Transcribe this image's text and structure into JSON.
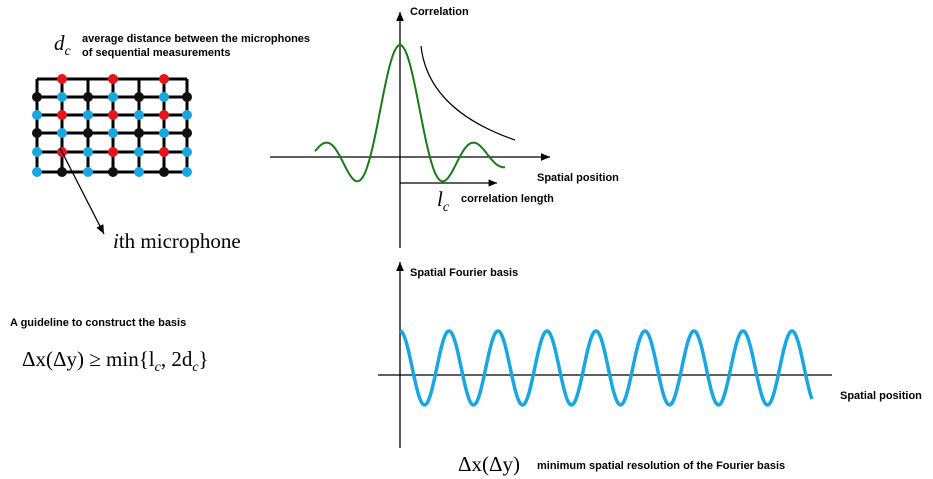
{
  "mic_grid": {
    "symbol": {
      "base": "d",
      "sub": "c"
    },
    "description": [
      "average distance between the microphones",
      "of sequential measurements"
    ],
    "mic_label": {
      "symbol": "i",
      "text": "th microphone"
    }
  },
  "correlation_plot": {
    "y_label": "Correlation",
    "x_label": "Spatial position",
    "length_symbol": {
      "base": "l",
      "sub": "c"
    },
    "length_label": "correlation length"
  },
  "fourier_plot": {
    "y_label": "Spatial Fourier basis",
    "x_label": "Spatial position",
    "resolution_symbol": "Δx(Δy)",
    "resolution_label": "minimum spatial resolution of the Fourier basis"
  },
  "guideline": {
    "title": "A guideline to construct the basis",
    "formula": [
      {
        "text": "Δx(Δy) ≥ min{l",
        "sub": false
      },
      {
        "text": "c",
        "sub": true
      },
      {
        "text": ", 2d",
        "sub": false
      },
      {
        "text": "c",
        "sub": true
      },
      {
        "text": "}",
        "sub": false
      }
    ]
  }
}
